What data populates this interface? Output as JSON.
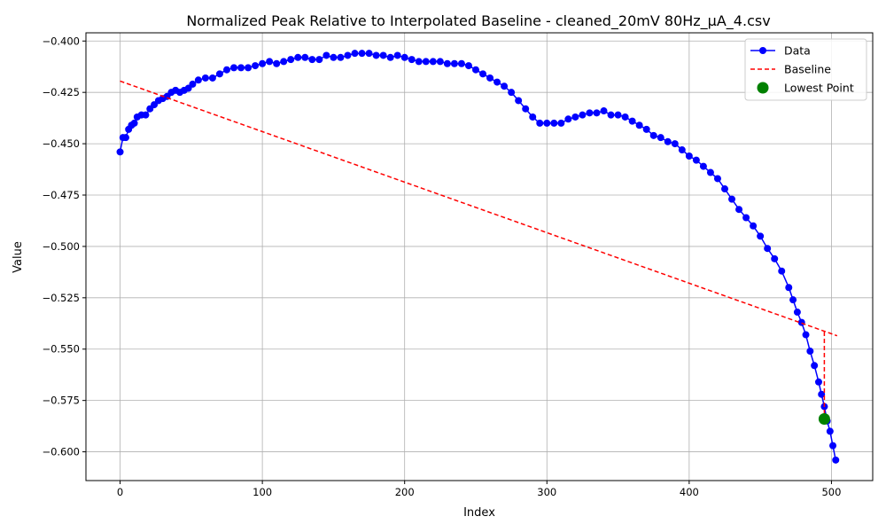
{
  "chart_data": {
    "type": "line",
    "title": "Normalized Peak Relative to Interpolated Baseline - cleaned_20mV 80Hz_µA_4.csv",
    "xlabel": "Index",
    "ylabel": "Value",
    "xlim": [
      -24,
      529
    ],
    "ylim": [
      -0.614,
      -0.396
    ],
    "xticks": [
      0,
      100,
      200,
      300,
      400,
      500
    ],
    "xtick_labels": [
      "0",
      "100",
      "200",
      "300",
      "400",
      "500"
    ],
    "yticks": [
      -0.6,
      -0.575,
      -0.55,
      -0.525,
      -0.5,
      -0.475,
      -0.45,
      -0.425,
      -0.4
    ],
    "ytick_labels": [
      "−0.600",
      "−0.575",
      "−0.550",
      "−0.525",
      "−0.500",
      "−0.475",
      "−0.450",
      "−0.425",
      "−0.400"
    ],
    "grid": true,
    "legend_position": "top-right",
    "series": [
      {
        "name": "Data",
        "color": "#0000ff",
        "x": [
          0,
          2,
          4,
          6,
          8,
          10,
          12,
          15,
          18,
          21,
          24,
          27,
          30,
          33,
          36,
          39,
          42,
          45,
          48,
          51,
          55,
          60,
          65,
          70,
          75,
          80,
          85,
          90,
          95,
          100,
          105,
          110,
          115,
          120,
          125,
          130,
          135,
          140,
          145,
          150,
          155,
          160,
          165,
          170,
          175,
          180,
          185,
          190,
          195,
          200,
          205,
          210,
          215,
          220,
          225,
          230,
          235,
          240,
          245,
          250,
          255,
          260,
          265,
          270,
          275,
          280,
          285,
          290,
          295,
          300,
          305,
          310,
          315,
          320,
          325,
          330,
          335,
          340,
          345,
          350,
          355,
          360,
          365,
          370,
          375,
          380,
          385,
          390,
          395,
          400,
          405,
          410,
          415,
          420,
          425,
          430,
          435,
          440,
          445,
          450,
          455,
          460,
          465,
          470,
          473,
          476,
          479,
          482,
          485,
          488,
          491,
          493,
          495,
          497,
          499,
          501,
          503
        ],
        "values": [
          -0.454,
          -0.447,
          -0.447,
          -0.443,
          -0.441,
          -0.44,
          -0.437,
          -0.436,
          -0.436,
          -0.433,
          -0.431,
          -0.429,
          -0.428,
          -0.427,
          -0.425,
          -0.424,
          -0.425,
          -0.424,
          -0.423,
          -0.421,
          -0.419,
          -0.418,
          -0.418,
          -0.416,
          -0.414,
          -0.413,
          -0.413,
          -0.413,
          -0.412,
          -0.411,
          -0.41,
          -0.411,
          -0.41,
          -0.409,
          -0.408,
          -0.408,
          -0.409,
          -0.409,
          -0.407,
          -0.408,
          -0.408,
          -0.407,
          -0.406,
          -0.406,
          -0.406,
          -0.407,
          -0.407,
          -0.408,
          -0.407,
          -0.408,
          -0.409,
          -0.41,
          -0.41,
          -0.41,
          -0.41,
          -0.411,
          -0.411,
          -0.411,
          -0.412,
          -0.414,
          -0.416,
          -0.418,
          -0.42,
          -0.422,
          -0.425,
          -0.429,
          -0.433,
          -0.437,
          -0.44,
          -0.44,
          -0.44,
          -0.44,
          -0.438,
          -0.437,
          -0.436,
          -0.435,
          -0.435,
          -0.434,
          -0.436,
          -0.436,
          -0.437,
          -0.439,
          -0.441,
          -0.443,
          -0.446,
          -0.447,
          -0.449,
          -0.45,
          -0.453,
          -0.456,
          -0.458,
          -0.461,
          -0.464,
          -0.467,
          -0.472,
          -0.477,
          -0.482,
          -0.486,
          -0.49,
          -0.495,
          -0.501,
          -0.506,
          -0.512,
          -0.52,
          -0.526,
          -0.532,
          -0.537,
          -0.543,
          -0.551,
          -0.558,
          -0.566,
          -0.572,
          -0.578,
          -0.585,
          -0.59,
          -0.597,
          -0.604
        ]
      },
      {
        "name": "Baseline",
        "color": "#ff0000",
        "x": [
          0,
          504
        ],
        "values": [
          -0.4195,
          -0.5435
        ]
      },
      {
        "name": "Lowest Point",
        "color": "#008000",
        "x": [
          495
        ],
        "values": [
          -0.584
        ]
      }
    ],
    "drop_line": {
      "x": 495,
      "from": -0.5415,
      "to": -0.584,
      "color": "#ff0000"
    }
  }
}
